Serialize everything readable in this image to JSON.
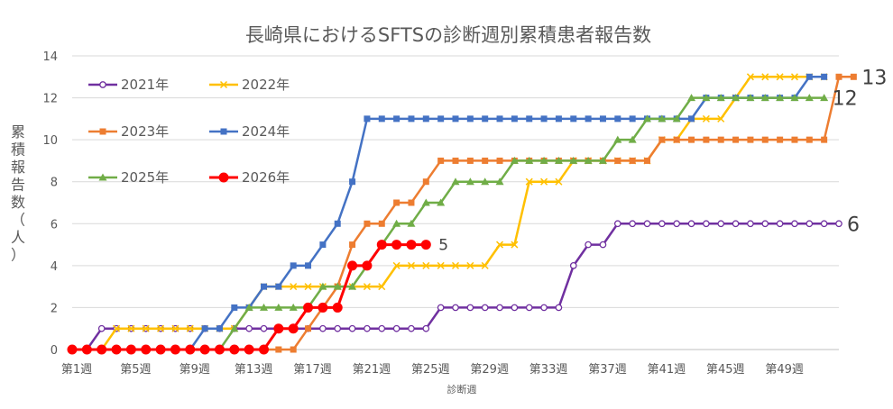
{
  "chart_data": {
    "type": "line",
    "title": "長崎県におけるSFTSの診断週別累積患者報告数",
    "xlabel": "診断週",
    "ylabel_chars": [
      "累",
      "積",
      "報",
      "告",
      "数",
      "（",
      "人",
      "）"
    ],
    "ylim": [
      0,
      14
    ],
    "yticks": [
      "0",
      "2",
      "4",
      "6",
      "8",
      "10",
      "12",
      "14"
    ],
    "xtick_labels": [
      "第1週",
      "第5週",
      "第9週",
      "第13週",
      "第17週",
      "第21週",
      "第25週",
      "第29週",
      "第33週",
      "第37週",
      "第41週",
      "第45週",
      "第49週"
    ],
    "xtick_weeks": [
      1,
      5,
      9,
      13,
      17,
      21,
      25,
      29,
      33,
      37,
      41,
      45,
      49
    ],
    "x_weeks": 53,
    "grid": "horizontal",
    "legend_position": "top-left",
    "series": [
      {
        "name": "2021年",
        "color": "#7030a0",
        "marker": "circle-open",
        "values": [
          0,
          0,
          1,
          1,
          1,
          1,
          1,
          1,
          1,
          1,
          1,
          1,
          1,
          1,
          1,
          1,
          1,
          1,
          1,
          1,
          1,
          1,
          1,
          1,
          1,
          2,
          2,
          2,
          2,
          2,
          2,
          2,
          2,
          2,
          4,
          5,
          5,
          6,
          6,
          6,
          6,
          6,
          6,
          6,
          6,
          6,
          6,
          6,
          6,
          6,
          6,
          6,
          6
        ],
        "end_label": "6"
      },
      {
        "name": "2022年",
        "color": "#ffc000",
        "marker": "x",
        "values": [
          0,
          0,
          0,
          1,
          1,
          1,
          1,
          1,
          1,
          1,
          1,
          1,
          2,
          3,
          3,
          3,
          3,
          3,
          3,
          3,
          3,
          3,
          4,
          4,
          4,
          4,
          4,
          4,
          4,
          5,
          5,
          8,
          8,
          8,
          9,
          9,
          9,
          9,
          9,
          9,
          10,
          10,
          11,
          11,
          11,
          12,
          13,
          13,
          13,
          13,
          13,
          13
        ],
        "end_label": ""
      },
      {
        "name": "2023年",
        "color": "#ed7d31",
        "marker": "square",
        "values": [
          0,
          0,
          0,
          0,
          0,
          0,
          0,
          0,
          0,
          0,
          0,
          0,
          0,
          0,
          0,
          0,
          1,
          2,
          3,
          5,
          6,
          6,
          7,
          7,
          8,
          9,
          9,
          9,
          9,
          9,
          9,
          9,
          9,
          9,
          9,
          9,
          9,
          9,
          9,
          9,
          10,
          10,
          10,
          10,
          10,
          10,
          10,
          10,
          10,
          10,
          10,
          10,
          13,
          13
        ],
        "end_label": "13"
      },
      {
        "name": "2024年",
        "color": "#4472c4",
        "marker": "square",
        "values": [
          0,
          0,
          0,
          0,
          0,
          0,
          0,
          0,
          0,
          1,
          1,
          2,
          2,
          3,
          3,
          4,
          4,
          5,
          6,
          8,
          11,
          11,
          11,
          11,
          11,
          11,
          11,
          11,
          11,
          11,
          11,
          11,
          11,
          11,
          11,
          11,
          11,
          11,
          11,
          11,
          11,
          11,
          11,
          12,
          12,
          12,
          12,
          12,
          12,
          12,
          13,
          13
        ],
        "end_label": ""
      },
      {
        "name": "2025年",
        "color": "#70ad47",
        "marker": "triangle",
        "values": [
          0,
          0,
          0,
          0,
          0,
          0,
          0,
          0,
          0,
          0,
          0,
          1,
          2,
          2,
          2,
          2,
          2,
          3,
          3,
          3,
          4,
          5,
          6,
          6,
          7,
          7,
          8,
          8,
          8,
          8,
          9,
          9,
          9,
          9,
          9,
          9,
          9,
          10,
          10,
          11,
          11,
          11,
          12,
          12,
          12,
          12,
          12,
          12,
          12,
          12,
          12,
          12
        ],
        "end_label": "12"
      },
      {
        "name": "2026年",
        "color": "#ff0000",
        "marker": "circle-filled",
        "values": [
          0,
          0,
          0,
          0,
          0,
          0,
          0,
          0,
          0,
          0,
          0,
          0,
          0,
          0,
          1,
          1,
          2,
          2,
          2,
          4,
          4,
          5,
          5,
          5,
          5
        ],
        "end_label": "5"
      }
    ]
  }
}
